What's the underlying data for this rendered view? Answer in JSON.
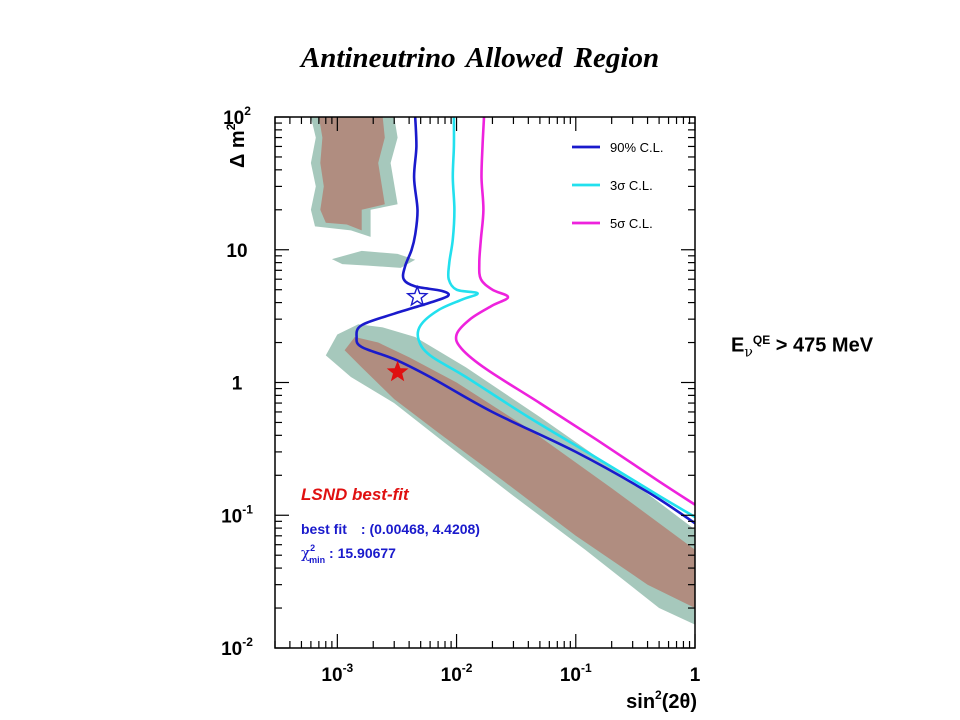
{
  "title": "Antineutrino  Allowed Region",
  "side_annotation": {
    "prefix": "E",
    "sub": "ν",
    "sup": "QE",
    "suffix": " > 475 MeV"
  },
  "chart_data": {
    "type": "line",
    "x_scale": "log",
    "y_scale": "log",
    "xlim": [
      0.0003,
      1
    ],
    "ylim": [
      0.01,
      100
    ],
    "grid": false,
    "xlabel": {
      "main": "sin",
      "sup": "2",
      "rest": "(2θ)"
    },
    "ylabel": {
      "main": "Δ m",
      "sup": "2"
    },
    "x_ticks": [
      {
        "value": 0.001,
        "base": "10",
        "exp": "-3"
      },
      {
        "value": 0.01,
        "base": "10",
        "exp": "-2"
      },
      {
        "value": 0.1,
        "base": "10",
        "exp": "-1"
      },
      {
        "value": 1,
        "base": "1",
        "exp": ""
      }
    ],
    "y_ticks": [
      {
        "value": 0.01,
        "base": "10",
        "exp": "-2"
      },
      {
        "value": 0.1,
        "base": "10",
        "exp": "-1"
      },
      {
        "value": 1,
        "base": "1",
        "exp": ""
      },
      {
        "value": 10,
        "base": "10",
        "exp": ""
      },
      {
        "value": 100,
        "base": "10",
        "exp": "2"
      }
    ],
    "legend_position": "top-right",
    "series": [
      {
        "name": "90% C.L.",
        "color": "#1a1acc",
        "points": [
          [
            0.0045,
            100
          ],
          [
            0.0046,
            60
          ],
          [
            0.0044,
            35
          ],
          [
            0.0047,
            20
          ],
          [
            0.0045,
            13
          ],
          [
            0.0042,
            10
          ],
          [
            0.0037,
            7.5
          ],
          [
            0.0036,
            6
          ],
          [
            0.0045,
            5.3
          ],
          [
            0.0075,
            4.9
          ],
          [
            0.0085,
            4.5
          ],
          [
            0.006,
            4
          ],
          [
            0.003,
            3.3
          ],
          [
            0.0016,
            2.7
          ],
          [
            0.00145,
            2.2
          ],
          [
            0.0016,
            1.85
          ],
          [
            0.003,
            1.5
          ],
          [
            0.006,
            1.1
          ],
          [
            0.02,
            0.6
          ],
          [
            0.1,
            0.3
          ],
          [
            0.4,
            0.15
          ],
          [
            1,
            0.087
          ]
        ]
      },
      {
        "name": "3σ C.L.",
        "color": "#22e0ee",
        "points": [
          [
            0.0095,
            100
          ],
          [
            0.0095,
            60
          ],
          [
            0.0093,
            35
          ],
          [
            0.0096,
            20
          ],
          [
            0.0093,
            12
          ],
          [
            0.0087,
            8
          ],
          [
            0.0086,
            6
          ],
          [
            0.01,
            5
          ],
          [
            0.015,
            4.7
          ],
          [
            0.011,
            4.2
          ],
          [
            0.007,
            3.5
          ],
          [
            0.005,
            2.7
          ],
          [
            0.0048,
            2.1
          ],
          [
            0.006,
            1.6
          ],
          [
            0.012,
            1.1
          ],
          [
            0.04,
            0.55
          ],
          [
            0.15,
            0.27
          ],
          [
            0.5,
            0.14
          ],
          [
            1,
            0.097
          ]
        ]
      },
      {
        "name": "5σ C.L.",
        "color": "#ee22dd",
        "points": [
          [
            0.017,
            100
          ],
          [
            0.0165,
            60
          ],
          [
            0.0162,
            35
          ],
          [
            0.0168,
            20
          ],
          [
            0.016,
            12
          ],
          [
            0.0155,
            8
          ],
          [
            0.016,
            6
          ],
          [
            0.02,
            5
          ],
          [
            0.027,
            4.4
          ],
          [
            0.02,
            3.8
          ],
          [
            0.013,
            3
          ],
          [
            0.01,
            2.3
          ],
          [
            0.011,
            1.8
          ],
          [
            0.018,
            1.25
          ],
          [
            0.05,
            0.7
          ],
          [
            0.15,
            0.37
          ],
          [
            0.5,
            0.18
          ],
          [
            1,
            0.12
          ]
        ]
      }
    ],
    "markers": [
      {
        "label": "best fit",
        "x": 0.00468,
        "y": 4.4208,
        "shape": "star-open",
        "color": "#1a1acc"
      },
      {
        "label": "LSND best-fit",
        "x": 0.0032,
        "y": 1.2,
        "shape": "star-filled",
        "color": "#e01010"
      }
    ],
    "regions": [
      {
        "role": "lsnd-99",
        "color": "#a6c8bc",
        "points": [
          [
            0.0006,
            100
          ],
          [
            0.00066,
            70
          ],
          [
            0.0006,
            45
          ],
          [
            0.00066,
            30
          ],
          [
            0.0006,
            20
          ],
          [
            0.00065,
            15
          ],
          [
            0.0013,
            14
          ],
          [
            0.0019,
            12.5
          ],
          [
            0.0019,
            20
          ],
          [
            0.0032,
            22
          ],
          [
            0.0028,
            45
          ],
          [
            0.0032,
            70
          ],
          [
            0.003,
            100
          ],
          [
            0.00158,
            100
          ],
          [
            0.0011,
            100
          ],
          [
            0.0008,
            100
          ]
        ]
      },
      {
        "role": "lsnd-99-island",
        "color": "#a6c8bc",
        "points": [
          [
            0.0009,
            8.5
          ],
          [
            0.0016,
            9.8
          ],
          [
            0.0032,
            9.3
          ],
          [
            0.0045,
            8.4
          ],
          [
            0.0034,
            7.3
          ],
          [
            0.0018,
            7.6
          ],
          [
            0.0011,
            7.8
          ]
        ]
      },
      {
        "role": "lsnd-99-band",
        "color": "#a6c8bc",
        "points": [
          [
            0.001,
            2.3
          ],
          [
            0.0015,
            2.75
          ],
          [
            0.0024,
            2.6
          ],
          [
            0.0045,
            2.2
          ],
          [
            0.012,
            1.3
          ],
          [
            0.05,
            0.55
          ],
          [
            0.25,
            0.2
          ],
          [
            1,
            0.078
          ],
          [
            1,
            0.015
          ],
          [
            0.5,
            0.02
          ],
          [
            0.12,
            0.055
          ],
          [
            0.03,
            0.14
          ],
          [
            0.008,
            0.35
          ],
          [
            0.003,
            0.7
          ],
          [
            0.0013,
            1.1
          ],
          [
            0.0008,
            1.6
          ]
        ]
      },
      {
        "role": "lsnd-90",
        "color": "#b08d80",
        "points": [
          [
            0.0007,
            100
          ],
          [
            0.00075,
            70
          ],
          [
            0.00072,
            45
          ],
          [
            0.00077,
            30
          ],
          [
            0.00072,
            20
          ],
          [
            0.0008,
            16
          ],
          [
            0.0012,
            15.5
          ],
          [
            0.0016,
            14
          ],
          [
            0.0016,
            20
          ],
          [
            0.0025,
            22
          ],
          [
            0.0022,
            45
          ],
          [
            0.0025,
            70
          ],
          [
            0.0024,
            100
          ]
        ]
      },
      {
        "role": "lsnd-90-band",
        "color": "#b08d80",
        "points": [
          [
            0.0014,
            2.2
          ],
          [
            0.0022,
            2.0
          ],
          [
            0.004,
            1.55
          ],
          [
            0.01,
            1.0
          ],
          [
            0.04,
            0.45
          ],
          [
            0.2,
            0.16
          ],
          [
            1,
            0.055
          ],
          [
            1,
            0.02
          ],
          [
            0.4,
            0.03
          ],
          [
            0.1,
            0.07
          ],
          [
            0.025,
            0.18
          ],
          [
            0.007,
            0.42
          ],
          [
            0.003,
            0.75
          ],
          [
            0.0016,
            1.3
          ],
          [
            0.00115,
            1.75
          ]
        ]
      }
    ],
    "fit_info": {
      "heading": "LSND best-fit",
      "best_fit_label": "best fit",
      "best_fit_value": ": (0.00468, 4.4208)",
      "chi2_symbol": "χ",
      "chi2_sup": "2",
      "chi2_sub": "min",
      "chi2_value": " : 15.90677"
    },
    "colors": {
      "axis": "#000000",
      "fit_heading": "#e01010",
      "fit_text": "#1a1acc"
    }
  }
}
